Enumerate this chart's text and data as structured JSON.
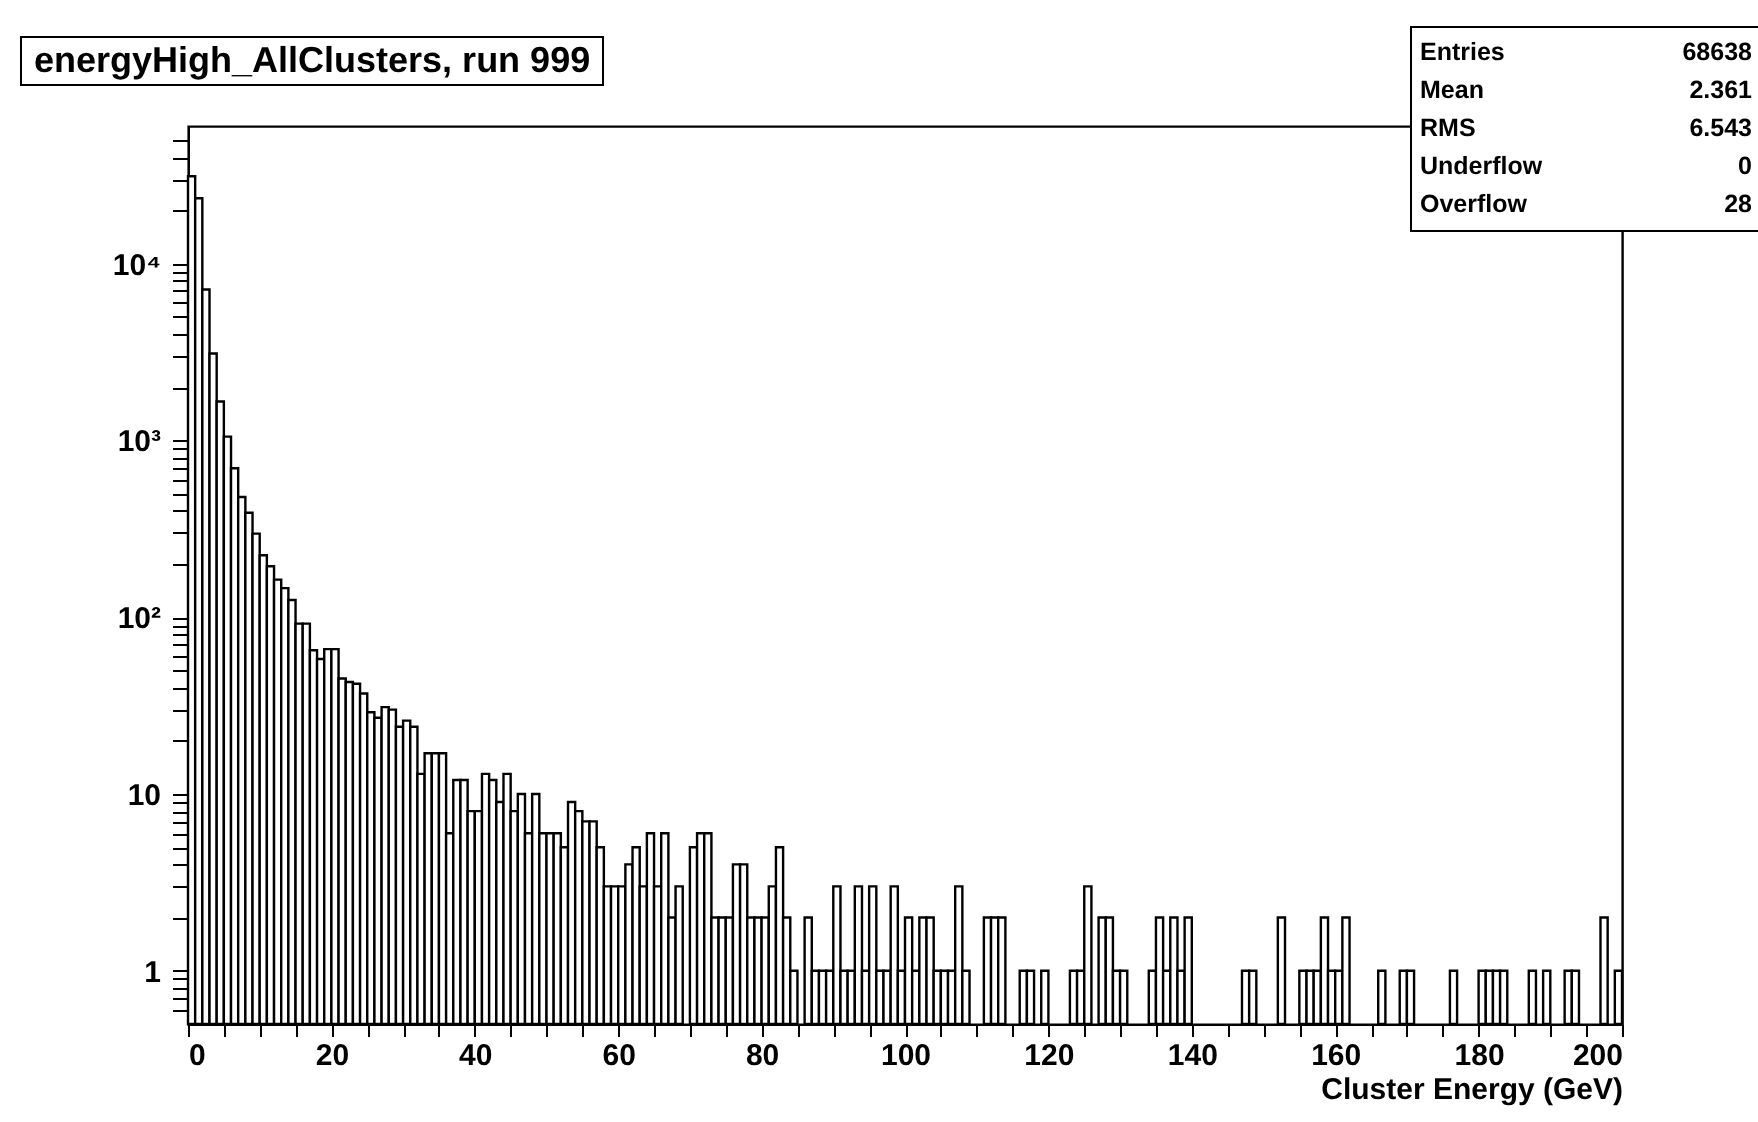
{
  "chart_data": {
    "type": "histogram",
    "title": "energyHigh_AllClusters, run 999",
    "xlabel": "Cluster Energy (GeV)",
    "annotations": [
      "Entries 68638",
      "Mean 2.361",
      "RMS 6.543",
      "Underflow 0",
      "Overflow 28"
    ],
    "color": "#000000",
    "log": true,
    "bins": [
      0,
      1,
      2,
      3,
      4,
      5,
      6,
      7,
      8,
      9,
      10,
      11,
      12,
      13,
      14,
      15,
      16,
      17,
      18,
      19,
      20,
      21,
      22,
      23,
      24,
      25,
      26,
      27,
      28,
      29,
      30,
      31,
      32,
      33,
      34,
      35,
      36,
      37,
      38,
      39,
      40,
      41,
      42,
      43,
      44,
      45,
      46,
      47,
      48,
      49,
      50,
      51,
      52,
      53,
      54,
      55,
      56,
      57,
      58,
      59,
      60,
      61,
      62,
      63,
      64,
      65,
      66,
      67,
      68,
      69,
      70,
      71,
      72,
      73,
      74,
      75,
      76,
      77,
      78,
      79,
      80,
      81,
      82,
      83,
      84,
      85,
      86,
      87,
      88,
      89,
      90,
      91,
      92,
      93,
      94,
      95,
      96,
      97,
      98,
      99,
      100,
      101,
      102,
      103,
      104,
      105,
      106,
      107,
      108,
      109,
      110,
      111,
      112,
      113,
      114,
      115,
      116,
      117,
      118,
      119,
      120,
      121,
      122,
      123,
      124,
      125,
      126,
      127,
      128,
      129,
      130,
      131,
      132,
      133,
      134,
      135,
      136,
      137,
      138,
      139,
      140,
      141,
      142,
      143,
      144,
      145,
      146,
      147,
      148,
      149,
      150,
      151,
      152,
      153,
      154,
      155,
      156,
      157,
      158,
      159,
      160,
      161,
      162,
      163,
      164,
      165,
      166,
      167,
      168,
      169,
      170,
      171,
      172,
      173,
      174,
      175,
      176,
      177,
      178,
      179,
      180,
      181,
      182,
      183,
      184,
      185,
      186,
      187,
      188,
      189,
      190,
      191,
      192,
      193,
      194,
      195,
      196,
      197,
      198,
      199,
      200
    ],
    "values": [
      31200,
      23400,
      7130,
      3100,
      1660,
      1050,
      695,
      478,
      390,
      297,
      224,
      194,
      163,
      146,
      125,
      92,
      92,
      65,
      58,
      66,
      66,
      45,
      43,
      42,
      37,
      29,
      27,
      31,
      30,
      24,
      26,
      24,
      13,
      17,
      17,
      17,
      6,
      12,
      12,
      8,
      8,
      13,
      12,
      9,
      13,
      8,
      10,
      6,
      10,
      6,
      6,
      6,
      5,
      9,
      8,
      7,
      7,
      5,
      3,
      3,
      3,
      4,
      5,
      3,
      6,
      3,
      6,
      2,
      3,
      null,
      5,
      6,
      6,
      2,
      2,
      2,
      4,
      4,
      2,
      2,
      2,
      3,
      5,
      2,
      1,
      null,
      2,
      1,
      1,
      1,
      3,
      1,
      1,
      3,
      1,
      3,
      1,
      1,
      3,
      1,
      2,
      1,
      2,
      2,
      1,
      1,
      1,
      3,
      1,
      null,
      null,
      2,
      2,
      2,
      null,
      null,
      1,
      1,
      null,
      1,
      null,
      null,
      null,
      1,
      1,
      3,
      null,
      2,
      2,
      1,
      1,
      null,
      null,
      null,
      1,
      2,
      1,
      2,
      1,
      2,
      null,
      null,
      null,
      null,
      null,
      null,
      null,
      1,
      1,
      null,
      null,
      null,
      2,
      null,
      null,
      1,
      1,
      1,
      2,
      1,
      1,
      2,
      null,
      null,
      null,
      null,
      1,
      null,
      null,
      1,
      1,
      null,
      null,
      null,
      null,
      null,
      1,
      null,
      null,
      null,
      1,
      1,
      1,
      1,
      null,
      null,
      null,
      1,
      null,
      1,
      null,
      null,
      1,
      1,
      null,
      null,
      null,
      2,
      null,
      1
    ],
    "xlim": [
      0,
      200
    ],
    "xticks": [
      0,
      {
        "value": 5,
        "label": null
      },
      {
        "value": 10,
        "label": null
      },
      {
        "value": 15,
        "label": null
      },
      20,
      {
        "value": 25,
        "label": null
      },
      {
        "value": 30,
        "label": null
      },
      {
        "value": 35,
        "label": null
      },
      40,
      {
        "value": 45,
        "label": null
      },
      {
        "value": 50,
        "label": null
      },
      {
        "value": 55,
        "label": null
      },
      60,
      {
        "value": 65,
        "label": null
      },
      {
        "value": 70,
        "label": null
      },
      {
        "value": 75,
        "label": null
      },
      80,
      {
        "value": 85,
        "label": null
      },
      {
        "value": 90,
        "label": null
      },
      {
        "value": 95,
        "label": null
      },
      100,
      {
        "value": 105,
        "label": null
      },
      {
        "value": 110,
        "label": null
      },
      {
        "value": 115,
        "label": null
      },
      120,
      {
        "value": 125,
        "label": null
      },
      {
        "value": 130,
        "label": null
      },
      {
        "value": 135,
        "label": null
      },
      140,
      {
        "value": 145,
        "label": null
      },
      {
        "value": 150,
        "label": null
      },
      {
        "value": 155,
        "label": null
      },
      160,
      {
        "value": 165,
        "label": null
      },
      {
        "value": 170,
        "label": null
      },
      {
        "value": 175,
        "label": null
      },
      180,
      {
        "value": 185,
        "label": null
      },
      {
        "value": 190,
        "label": null
      },
      {
        "value": 195,
        "label": null
      },
      200
    ],
    "ylim": [
      0.5,
      60000
    ],
    "yticks": [
      {
        "value": 0.6,
        "label": null
      },
      {
        "value": 0.7,
        "label": null
      },
      {
        "value": 0.8,
        "label": null
      },
      {
        "value": 0.9,
        "label": null
      },
      1,
      {
        "value": 2,
        "label": null
      },
      {
        "value": 3,
        "label": null
      },
      {
        "value": 4,
        "label": null
      },
      {
        "value": 5,
        "label": null
      },
      {
        "value": 6,
        "label": null
      },
      {
        "value": 7,
        "label": null
      },
      {
        "value": 8,
        "label": null
      },
      {
        "value": 9,
        "label": null
      },
      10,
      {
        "value": 20,
        "label": null
      },
      {
        "value": 30,
        "label": null
      },
      {
        "value": 40,
        "label": null
      },
      {
        "value": 50,
        "label": null
      },
      {
        "value": 60,
        "label": null
      },
      {
        "value": 70,
        "label": null
      },
      {
        "value": 80,
        "label": null
      },
      {
        "value": 90,
        "label": null
      },
      {
        "value": 100,
        "label": "10²"
      },
      {
        "value": 200,
        "label": null
      },
      {
        "value": 300,
        "label": null
      },
      {
        "value": 400,
        "label": null
      },
      {
        "value": 500,
        "label": null
      },
      {
        "value": 600,
        "label": null
      },
      {
        "value": 700,
        "label": null
      },
      {
        "value": 800,
        "label": null
      },
      {
        "value": 900,
        "label": null
      },
      {
        "value": 1000,
        "label": "10³"
      },
      {
        "value": 2000,
        "label": null
      },
      {
        "value": 3000,
        "label": null
      },
      {
        "value": 4000,
        "label": null
      },
      {
        "value": 5000,
        "label": null
      },
      {
        "value": 6000,
        "label": null
      },
      {
        "value": 7000,
        "label": null
      },
      {
        "value": 8000,
        "label": null
      },
      {
        "value": 9000,
        "label": null
      },
      {
        "value": 10000,
        "label": "10⁴"
      },
      {
        "value": 20000,
        "label": null
      },
      {
        "value": 30000,
        "label": null
      },
      {
        "value": 40000,
        "label": null
      },
      {
        "value": 50000,
        "label": null
      }
    ]
  }
}
